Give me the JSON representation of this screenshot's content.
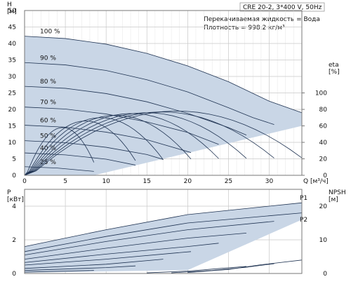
{
  "header": {
    "model": "CRE 20-2, 3*400 V, 50Hz",
    "liquid": "Перекачиваемая жидкость = Вода",
    "density": "Плотность = 998.2 кг/м³"
  },
  "chart_data": [
    {
      "type": "line",
      "name": "head",
      "xlabel": "Q [м³/ч]",
      "ylabel_left": "H\n[м]",
      "ylabel_right": "eta\n[%]",
      "xlim": [
        0,
        34
      ],
      "ylim": [
        0,
        50
      ],
      "y2lim": [
        0,
        100
      ],
      "x_ticks": [
        "0",
        "5",
        "10",
        "15",
        "20",
        "25",
        "30"
      ],
      "y_ticks": [
        "0",
        "5",
        "10",
        "15",
        "20",
        "25",
        "30",
        "35",
        "40",
        "45",
        "50"
      ],
      "y2_ticks": [
        "0",
        "20",
        "40",
        "60",
        "80",
        "100"
      ],
      "grid": true,
      "speed_curves": [
        {
          "label": "100 %",
          "points": [
            [
              0,
              42.2
            ],
            [
              5,
              41.5
            ],
            [
              10,
              39.8
            ],
            [
              15,
              37.0
            ],
            [
              20,
              33.2
            ],
            [
              25,
              28.4
            ],
            [
              30,
              22.5
            ],
            [
              34,
              19.0
            ]
          ]
        },
        {
          "label": "90 %",
          "points": [
            [
              0,
              34.2
            ],
            [
              5,
              33.5
            ],
            [
              10,
              31.8
            ],
            [
              15,
              29.0
            ],
            [
              20,
              25.3
            ],
            [
              25,
              20.5
            ],
            [
              28,
              17.5
            ],
            [
              30.6,
              15.4
            ]
          ]
        },
        {
          "label": "80 %",
          "points": [
            [
              0,
              27.0
            ],
            [
              5,
              26.4
            ],
            [
              10,
              24.8
            ],
            [
              15,
              22.3
            ],
            [
              20,
              18.8
            ],
            [
              25,
              14.5
            ],
            [
              27.2,
              12.2
            ]
          ]
        },
        {
          "label": "70 %",
          "points": [
            [
              0,
              20.7
            ],
            [
              5,
              20.1
            ],
            [
              10,
              18.6
            ],
            [
              15,
              16.2
            ],
            [
              20,
              13.0
            ],
            [
              23.8,
              9.4
            ]
          ]
        },
        {
          "label": "60 %",
          "points": [
            [
              0,
              15.2
            ],
            [
              5,
              14.6
            ],
            [
              10,
              13.1
            ],
            [
              15,
              10.8
            ],
            [
              20.4,
              6.9
            ]
          ]
        },
        {
          "label": "50 %",
          "points": [
            [
              0,
              10.5
            ],
            [
              5,
              9.9
            ],
            [
              10,
              8.5
            ],
            [
              15,
              6.3
            ],
            [
              17.0,
              4.8
            ]
          ]
        },
        {
          "label": "40 %",
          "points": [
            [
              0,
              6.8
            ],
            [
              5,
              6.2
            ],
            [
              10,
              4.9
            ],
            [
              13.6,
              3.1
            ]
          ]
        },
        {
          "label": "25 %",
          "points": [
            [
              0,
              2.6
            ],
            [
              4,
              2.2
            ],
            [
              8.5,
              1.2
            ]
          ]
        }
      ],
      "curve_labels": [
        "100 %",
        "90 %",
        "80 %",
        "70 %",
        "60 %",
        "50 %",
        "40 %",
        "25 %"
      ],
      "efficiency_curves": [
        {
          "max_q": 34.0,
          "peak": 78
        },
        {
          "max_q": 30.6,
          "peak": 77
        },
        {
          "max_q": 27.2,
          "peak": 76
        },
        {
          "max_q": 23.8,
          "peak": 75
        },
        {
          "max_q": 20.4,
          "peak": 73
        },
        {
          "max_q": 17.0,
          "peak": 70
        },
        {
          "max_q": 13.6,
          "peak": 66
        },
        {
          "max_q": 8.5,
          "peak": 58
        }
      ],
      "area_color": "#c9d6e6",
      "line_color": "#1f3352"
    },
    {
      "type": "line",
      "name": "power",
      "xlabel": "",
      "ylabel_left": "P\n[кВт]",
      "ylabel_right": "NPSH\n[м]",
      "xlim": [
        0,
        34
      ],
      "ylim": [
        0,
        5
      ],
      "y2lim": [
        0,
        25
      ],
      "x_ticks": [
        "0",
        "5",
        "10",
        "15",
        "20",
        "25",
        "30"
      ],
      "y_ticks": [
        "0",
        "2",
        "4"
      ],
      "y2_ticks": [
        "0",
        "10",
        "20"
      ],
      "grid": true,
      "series_labels": [
        "P1",
        "P2"
      ],
      "power_curves": [
        {
          "points": [
            [
              0,
              1.6
            ],
            [
              10,
              2.6
            ],
            [
              20,
              3.5
            ],
            [
              34,
              4.2
            ]
          ]
        },
        {
          "points": [
            [
              0,
              1.3
            ],
            [
              10,
              2.2
            ],
            [
              20,
              3.0
            ],
            [
              34,
              3.6
            ]
          ]
        },
        {
          "points": [
            [
              0,
              1.1
            ],
            [
              10,
              1.9
            ],
            [
              20,
              2.6
            ],
            [
              30.6,
              3.1
            ]
          ]
        },
        {
          "points": [
            [
              0,
              0.85
            ],
            [
              10,
              1.5
            ],
            [
              20,
              2.1
            ],
            [
              27.2,
              2.4
            ]
          ]
        },
        {
          "points": [
            [
              0,
              0.65
            ],
            [
              10,
              1.15
            ],
            [
              20,
              1.6
            ],
            [
              23.8,
              1.8
            ]
          ]
        },
        {
          "points": [
            [
              0,
              0.5
            ],
            [
              10,
              0.85
            ],
            [
              20.4,
              1.3
            ]
          ]
        },
        {
          "points": [
            [
              0,
              0.3
            ],
            [
              10,
              0.55
            ],
            [
              17,
              0.85
            ]
          ]
        },
        {
          "points": [
            [
              0,
              0.18
            ],
            [
              10,
              0.35
            ],
            [
              13.6,
              0.45
            ]
          ]
        },
        {
          "points": [
            [
              0,
              0.08
            ],
            [
              8.5,
              0.18
            ]
          ]
        }
      ],
      "npsh_curves": [
        {
          "points": [
            [
              20,
              0.3
            ],
            [
              25,
              1.2
            ],
            [
              29,
              2.6
            ],
            [
              34,
              4.0
            ]
          ]
        },
        {
          "points": [
            [
              18,
              0.2
            ],
            [
              23,
              0.9
            ],
            [
              27,
              1.8
            ],
            [
              30.6,
              2.9
            ]
          ]
        },
        {
          "points": [
            [
              15,
              0.2
            ],
            [
              20,
              0.7
            ],
            [
              24,
              1.5
            ],
            [
              27.2,
              2.1
            ]
          ]
        }
      ],
      "area_color": "#c9d6e6",
      "line_color": "#1f3352"
    }
  ]
}
